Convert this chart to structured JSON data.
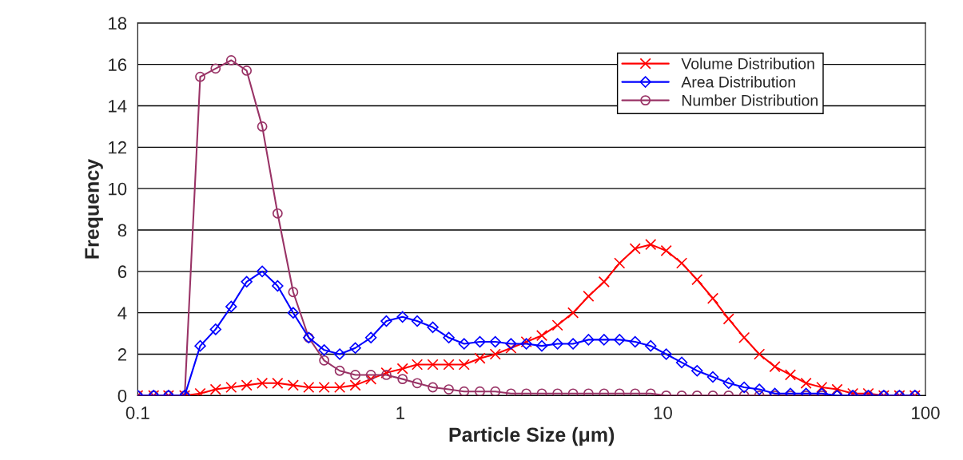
{
  "chart_data": {
    "type": "line",
    "xlabel": "Particle Size (μm)",
    "ylabel": "Frequency",
    "x": [
      0.1,
      0.115,
      0.131,
      0.151,
      0.173,
      0.198,
      0.227,
      0.26,
      0.298,
      0.341,
      0.391,
      0.448,
      0.513,
      0.588,
      0.674,
      0.773,
      0.885,
      1.02,
      1.16,
      1.33,
      1.53,
      1.75,
      2.01,
      2.3,
      2.64,
      3.02,
      3.46,
      3.97,
      4.55,
      5.21,
      5.97,
      6.84,
      7.84,
      8.99,
      10.3,
      11.8,
      13.5,
      15.5,
      17.8,
      20.4,
      23.3,
      26.7,
      30.6,
      35.1,
      40.3,
      46.1,
      52.9,
      60.6,
      69.4,
      79.6,
      91.2
    ],
    "series": [
      {
        "name": "Volume Distribution",
        "color": "#ff0000",
        "marker": "cross",
        "values": [
          0,
          0,
          0,
          0,
          0.1,
          0.3,
          0.4,
          0.5,
          0.6,
          0.6,
          0.5,
          0.4,
          0.4,
          0.4,
          0.5,
          0.8,
          1.1,
          1.3,
          1.5,
          1.5,
          1.5,
          1.5,
          1.8,
          2.0,
          2.3,
          2.6,
          2.9,
          3.4,
          4.0,
          4.8,
          5.5,
          6.4,
          7.1,
          7.3,
          7.0,
          6.4,
          5.6,
          4.7,
          3.7,
          2.8,
          2.0,
          1.4,
          1.0,
          0.6,
          0.4,
          0.3,
          0.1,
          0.1,
          0,
          0,
          0
        ]
      },
      {
        "name": "Area Distribution",
        "color": "#0000ff",
        "marker": "diamond",
        "values": [
          0,
          0,
          0,
          0,
          2.4,
          3.2,
          4.3,
          5.5,
          6.0,
          5.3,
          4.0,
          2.8,
          2.2,
          2.0,
          2.3,
          2.8,
          3.6,
          3.8,
          3.6,
          3.3,
          2.8,
          2.5,
          2.6,
          2.6,
          2.5,
          2.5,
          2.4,
          2.5,
          2.5,
          2.7,
          2.7,
          2.7,
          2.6,
          2.4,
          2.0,
          1.6,
          1.2,
          0.9,
          0.6,
          0.4,
          0.3,
          0.1,
          0.1,
          0.1,
          0.1,
          0,
          0,
          0,
          0,
          0,
          0
        ]
      },
      {
        "name": "Number Distribution",
        "color": "#993366",
        "marker": "circle",
        "values": [
          0,
          0,
          0,
          0,
          15.4,
          15.8,
          16.2,
          15.7,
          13.0,
          8.8,
          5.0,
          2.8,
          1.7,
          1.2,
          1.0,
          1.0,
          1.0,
          0.8,
          0.6,
          0.4,
          0.3,
          0.2,
          0.2,
          0.2,
          0.1,
          0.1,
          0.1,
          0.1,
          0.1,
          0.1,
          0.1,
          0.1,
          0.1,
          0.1,
          0,
          0,
          0,
          0,
          0,
          0,
          0,
          0,
          0,
          0,
          0,
          0,
          0,
          0,
          0,
          0,
          0
        ]
      }
    ],
    "log": "x",
    "xlim": [
      0.1,
      100
    ],
    "xticks": [
      {
        "value": 0.1,
        "label": "0.1"
      },
      1,
      10,
      100
    ],
    "ylim": [
      0,
      18
    ],
    "yticks": [
      0,
      2,
      4,
      6,
      8,
      10,
      12,
      14,
      16,
      18
    ],
    "grid": "y",
    "legend": "top right"
  }
}
